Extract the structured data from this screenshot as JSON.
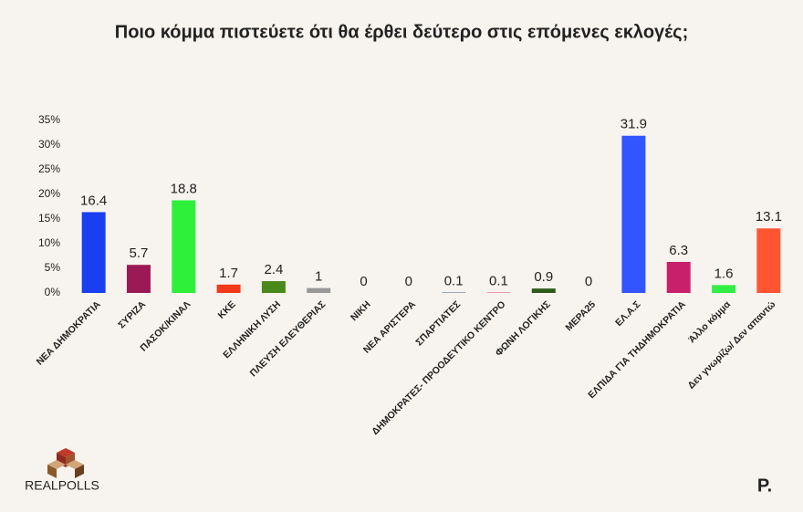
{
  "chart_data": {
    "type": "bar",
    "title": "Ποιο κόμμα πιστεύετε ότι θα έρθει δεύτερο στις επόμενες εκλογές;",
    "categories": [
      "ΝΕΑ ΔΗΜΟΚΡΑΤΙΑ",
      "ΣΥΡΙΖΑ",
      "ΠΑΣΟΚ/ΚΙΝΑΛ",
      "ΚΚΕ",
      "ΕΛΛΗΝΙΚΗ ΛΥΣΗ",
      "ΠΛΕΥΣΗ ΕΛΕΥΘΕΡΙΑΣ",
      "ΝΙΚΗ",
      "ΝΕΑ ΑΡΙΣΤΕΡΑ",
      "ΣΠΑΡΤΙΑΤΕΣ",
      "ΔΗΜΟΚΡΑΤΕΣ- ΠΡΟΟΔΕΥΤΙΚΟ ΚΕΝΤΡΟ",
      "ΦΩΝΗ ΛΟΓΙΚΗΣ",
      "ΜΕΡΑ25",
      "ΕΛ.Α.Σ",
      "ΕΛΠΙΔΑ ΓΙΑ ΤΗΔΗΜΟΚΡΑΤΙΑ",
      "Άλλο κόμμα",
      "Δεν γνωρίζω/ Δεν απαντώ"
    ],
    "values": [
      16.4,
      5.7,
      18.8,
      1.7,
      2.4,
      1,
      0,
      0,
      0.1,
      0.1,
      0.9,
      0,
      31.9,
      6.3,
      1.6,
      13.1
    ],
    "colors": [
      "#1a3ff0",
      "#9b1a55",
      "#2ef03a",
      "#f03a1a",
      "#4a8a1a",
      "#999999",
      "#cccccc",
      "#cc4444",
      "#4a6a8a",
      "#e05080",
      "#2e5a1a",
      "#e05020",
      "#3355ff",
      "#c8206a",
      "#33ee44",
      "#ff5533"
    ],
    "ylim": [
      0,
      35
    ],
    "yticks": [
      {
        "value": 0,
        "label": "0%"
      },
      {
        "value": 5,
        "label": "5%"
      },
      {
        "value": 10,
        "label": "10%"
      },
      {
        "value": 15,
        "label": "15%"
      },
      {
        "value": 20,
        "label": "20%"
      },
      {
        "value": 25,
        "label": "25%"
      },
      {
        "value": 30,
        "label": "30%"
      },
      {
        "value": 35,
        "label": "35%"
      }
    ],
    "grid": false
  },
  "branding": {
    "logo": "REALPOLLS",
    "publisher": "P."
  }
}
